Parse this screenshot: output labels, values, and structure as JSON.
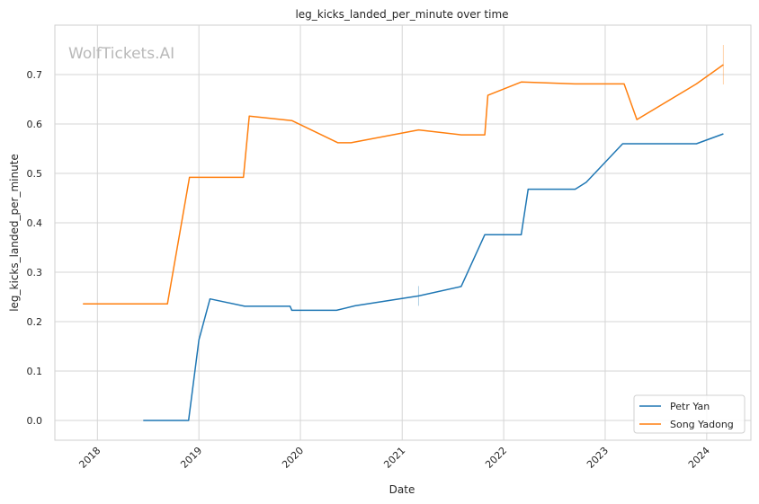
{
  "chart_data": {
    "type": "line",
    "title": "leg_kicks_landed_per_minute over time",
    "xlabel": "Date",
    "ylabel": "leg_kicks_landed_per_minute",
    "watermark": "WolfTickets.AI",
    "grid": true,
    "legend_position": "bottom-right",
    "xlim": [
      "2017-08-01",
      "2024-06-08"
    ],
    "ylim": [
      -0.04,
      0.8
    ],
    "x_ticks": [
      "2018",
      "2019",
      "2020",
      "2021",
      "2022",
      "2023",
      "2024"
    ],
    "y_ticks": [
      "0.0",
      "0.1",
      "0.2",
      "0.3",
      "0.4",
      "0.5",
      "0.6",
      "0.7"
    ],
    "series": [
      {
        "name": "Petr Yan",
        "color": "#1f77b4",
        "points": [
          [
            "2018-06-15",
            0.0
          ],
          [
            "2018-11-25",
            0.0
          ],
          [
            "2019-01-01",
            0.163
          ],
          [
            "2019-02-10",
            0.246
          ],
          [
            "2019-06-15",
            0.231
          ],
          [
            "2019-11-25",
            0.231
          ],
          [
            "2019-12-01",
            0.223
          ],
          [
            "2020-05-10",
            0.223
          ],
          [
            "2020-07-15",
            0.232
          ],
          [
            "2021-03-01",
            0.252
          ],
          [
            "2021-08-01",
            0.271
          ],
          [
            "2021-10-25",
            0.376
          ],
          [
            "2022-03-05",
            0.376
          ],
          [
            "2022-03-30",
            0.468
          ],
          [
            "2022-09-15",
            0.468
          ],
          [
            "2022-10-25",
            0.482
          ],
          [
            "2023-03-05",
            0.56
          ],
          [
            "2023-11-25",
            0.56
          ],
          [
            "2024-03-01",
            0.58
          ]
        ]
      },
      {
        "name": "Song Yadong",
        "color": "#ff7f0e",
        "points": [
          [
            "2017-11-10",
            0.236
          ],
          [
            "2018-09-10",
            0.236
          ],
          [
            "2018-11-28",
            0.492
          ],
          [
            "2019-06-10",
            0.492
          ],
          [
            "2019-07-01",
            0.616
          ],
          [
            "2019-12-01",
            0.607
          ],
          [
            "2020-05-15",
            0.562
          ],
          [
            "2020-07-01",
            0.562
          ],
          [
            "2021-03-01",
            0.588
          ],
          [
            "2021-08-01",
            0.578
          ],
          [
            "2021-10-25",
            0.578
          ],
          [
            "2021-11-05",
            0.658
          ],
          [
            "2022-03-05",
            0.685
          ],
          [
            "2022-09-15",
            0.681
          ],
          [
            "2023-03-10",
            0.681
          ],
          [
            "2023-04-25",
            0.609
          ],
          [
            "2023-11-25",
            0.681
          ],
          [
            "2024-03-01",
            0.72
          ]
        ]
      }
    ],
    "error_bars": [
      {
        "x": "2024-03-01",
        "low": 0.68,
        "high": 0.76,
        "color": "#ff7f0e"
      },
      {
        "x": "2021-03-01",
        "low": 0.232,
        "high": 0.272,
        "color": "#1f77b4"
      }
    ]
  }
}
